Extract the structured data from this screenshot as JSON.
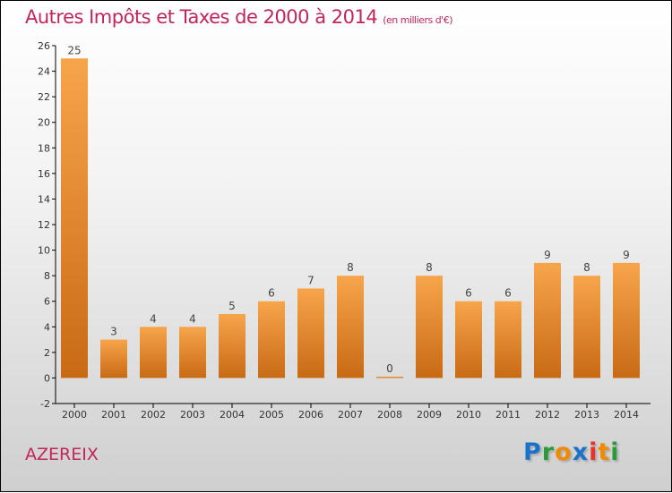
{
  "chart_data": {
    "type": "bar",
    "title": "Autres Impôts et Taxes de 2000 à 2014",
    "subtitle": "(en milliers d'€)",
    "categories": [
      "2000",
      "2001",
      "2002",
      "2003",
      "2004",
      "2005",
      "2006",
      "2007",
      "2008",
      "2009",
      "2010",
      "2011",
      "2012",
      "2013",
      "2014"
    ],
    "values": [
      25,
      3,
      4,
      4,
      5,
      6,
      7,
      8,
      0,
      8,
      6,
      6,
      9,
      8,
      9
    ],
    "ylim": [
      -2,
      26
    ],
    "yticks": [
      -2,
      0,
      2,
      4,
      6,
      8,
      10,
      12,
      14,
      16,
      18,
      20,
      22,
      24,
      26
    ],
    "xlabel": "",
    "ylabel": "",
    "bar_color_top": "#f7a54b",
    "bar_color_bottom": "#c86a14"
  },
  "commune": "AZEREIX",
  "logo": {
    "text": "Proxiti",
    "letters": [
      [
        "P",
        "#1a73c9"
      ],
      [
        "r",
        "#2a9a3a"
      ],
      [
        "o",
        "#f08a00"
      ],
      [
        "x",
        "#1a73c9"
      ],
      [
        "i",
        "#e8332a"
      ],
      [
        "t",
        "#f08a00"
      ],
      [
        "i",
        "#2a9a3a"
      ]
    ]
  }
}
